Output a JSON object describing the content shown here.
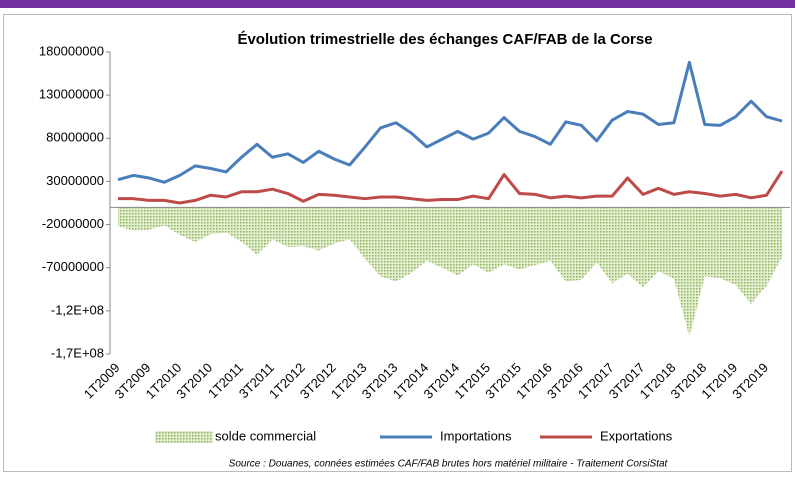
{
  "chart_data": {
    "type": "line",
    "title": "Évolution trimestrielle des échanges CAF/FAB de la Corse",
    "source": "Source : Douanes, connées estimées CAF/FAB brutes hors matériel militaire - Traitement CorsiStat",
    "categories": [
      "1T2009",
      null,
      "3T2009",
      null,
      "1T2010",
      null,
      "3T2010",
      null,
      "1T2011",
      null,
      "3T2011",
      null,
      "1T2012",
      null,
      "3T2012",
      null,
      "1T2013",
      null,
      "3T2013",
      null,
      "1T2014",
      null,
      "3T2014",
      null,
      "1T2015",
      null,
      "3T2015",
      null,
      "1T2016",
      null,
      "3T2016",
      null,
      "1T2017",
      null,
      "3T2017",
      null,
      "1T2018",
      null,
      "3T2018",
      null,
      "1T2019",
      null,
      "3T2019",
      null
    ],
    "series": [
      {
        "name": "solde commercial",
        "type": "area",
        "color": "#9bbb59",
        "values": [
          -22000000,
          -27000000,
          -26000000,
          -21000000,
          -32000000,
          -40000000,
          -31000000,
          -29000000,
          -40000000,
          -55000000,
          -37000000,
          -46000000,
          -45000000,
          -50000000,
          -42000000,
          -37000000,
          -60000000,
          -80000000,
          -86000000,
          -76000000,
          -62000000,
          -70000000,
          -79000000,
          -66000000,
          -76000000,
          -66000000,
          -72000000,
          -67000000,
          -62000000,
          -86000000,
          -84000000,
          -64000000,
          -88000000,
          -77000000,
          -93000000,
          -74000000,
          -83000000,
          -150000000,
          -80000000,
          -82000000,
          -90000000,
          -112000000,
          -91000000,
          -58000000
        ]
      },
      {
        "name": "Importations",
        "type": "line",
        "color": "#4a7ebb",
        "values": [
          32000000,
          37000000,
          34000000,
          29000000,
          37000000,
          48000000,
          45000000,
          41000000,
          58000000,
          73000000,
          58000000,
          62000000,
          52000000,
          65000000,
          56000000,
          49000000,
          70000000,
          92000000,
          98000000,
          86000000,
          70000000,
          79000000,
          88000000,
          79000000,
          86000000,
          104000000,
          88000000,
          82000000,
          73000000,
          99000000,
          95000000,
          77000000,
          101000000,
          111000000,
          108000000,
          96000000,
          98000000,
          168000000,
          96000000,
          95000000,
          105000000,
          123000000,
          105000000,
          100000000
        ]
      },
      {
        "name": "Exportations",
        "type": "line",
        "color": "#be4b48",
        "values": [
          10000000,
          10000000,
          8000000,
          8000000,
          5000000,
          8000000,
          14000000,
          12000000,
          18000000,
          18000000,
          21000000,
          16000000,
          7000000,
          15000000,
          14000000,
          12000000,
          10000000,
          12000000,
          12000000,
          10000000,
          8000000,
          9000000,
          9000000,
          13000000,
          10000000,
          38000000,
          16000000,
          15000000,
          11000000,
          13000000,
          11000000,
          13000000,
          13000000,
          34000000,
          15000000,
          22000000,
          15000000,
          18000000,
          16000000,
          13000000,
          15000000,
          11000000,
          14000000,
          42000000
        ]
      }
    ],
    "ylim": [
      -170000000,
      180000000
    ],
    "yticks": [
      180000000,
      130000000,
      80000000,
      30000000,
      -20000000,
      -70000000,
      {
        "value": -120000000,
        "label": "-1,2E+08"
      },
      {
        "value": -170000000,
        "label": "-1,7E+08"
      }
    ],
    "grid": false,
    "legend": "bottom"
  }
}
